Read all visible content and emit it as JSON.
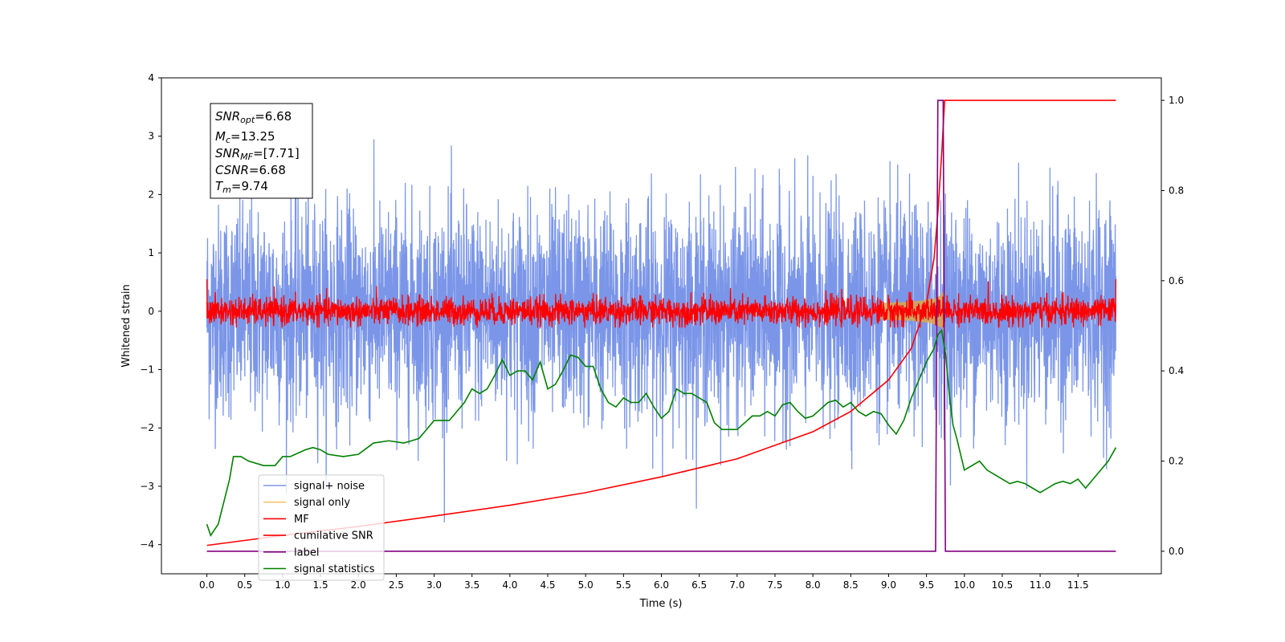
{
  "chart_data": {
    "type": "line",
    "xlabel": "Time (s)",
    "ylabel": "Whitened strain",
    "xlim": [
      -0.6,
      12.6
    ],
    "ylim": [
      -4.5,
      4.0
    ],
    "y2lim": [
      -0.05,
      1.05
    ],
    "x_ticks": [
      "0.0",
      "0.5",
      "1.0",
      "1.5",
      "2.0",
      "2.5",
      "3.0",
      "3.5",
      "4.0",
      "4.5",
      "5.0",
      "5.5",
      "6.0",
      "6.5",
      "7.0",
      "7.5",
      "8.0",
      "8.5",
      "9.0",
      "9.5",
      "10.0",
      "10.5",
      "11.0",
      "11.5"
    ],
    "y_ticks": [
      "4",
      "3",
      "2",
      "1",
      "0",
      "−1",
      "−2",
      "−3",
      "−4"
    ],
    "y2_ticks": [
      "1.0",
      "0.8",
      "0.6",
      "0.4",
      "0.2",
      "0.0"
    ],
    "info_box": {
      "snr_opt": {
        "symbol": "SNR",
        "sub": "opt",
        "value": "=6.68"
      },
      "mc": {
        "symbol": "M",
        "sub": "c",
        "value": "=13.25"
      },
      "snr_mf": {
        "symbol": "SNR",
        "sub": "MF",
        "value": "=[7.71]"
      },
      "csnr": {
        "symbol": "CSNR",
        "sub": "",
        "value": "=6.68"
      },
      "tm": {
        "symbol": "T",
        "sub": "m",
        "value": "=9.74"
      }
    },
    "legend": {
      "placement": "lower-left",
      "entries": [
        {
          "label": "signal+ noise",
          "color": "#7b96e8"
        },
        {
          "label": "signal only",
          "color": "#f5c26b"
        },
        {
          "label": "MF",
          "color": "#ff0000"
        },
        {
          "label": "cumilative SNR",
          "color": "#ff0000"
        },
        {
          "label": "label",
          "color": "#800080"
        },
        {
          "label": "signal statistics",
          "color": "#008000"
        }
      ]
    },
    "series": [
      {
        "name": "signal+ noise",
        "axis": "left",
        "description_std": 0.9,
        "x_range": [
          0.0,
          12.0
        ],
        "color": "#7b96e8"
      },
      {
        "name": "signal only",
        "axis": "left",
        "chirp_end": 9.74,
        "color": "#d9a84e"
      },
      {
        "name": "MF",
        "axis": "left",
        "color": "#ff0000"
      },
      {
        "name": "cumilative SNR",
        "axis": "right",
        "color": "#ff0000",
        "x": [
          0.0,
          1.0,
          2.0,
          3.0,
          4.0,
          5.0,
          6.0,
          7.0,
          8.0,
          8.5,
          9.0,
          9.3,
          9.5,
          9.6,
          9.65,
          9.7,
          9.74,
          10.0,
          11.0,
          12.0
        ],
        "y": [
          0.013,
          0.035,
          0.055,
          0.078,
          0.102,
          0.13,
          0.165,
          0.205,
          0.265,
          0.31,
          0.38,
          0.45,
          0.55,
          0.65,
          0.75,
          0.88,
          1.0,
          1.0,
          1.0,
          1.0
        ]
      },
      {
        "name": "label",
        "axis": "right",
        "color": "#800080",
        "x": [
          0.0,
          9.62,
          9.65,
          9.72,
          9.75,
          12.0
        ],
        "y": [
          0.0,
          0.0,
          1.0,
          1.0,
          0.0,
          0.0
        ]
      },
      {
        "name": "signal statistics",
        "axis": "right",
        "color": "#008000",
        "x": [
          0.0,
          0.05,
          0.15,
          0.3,
          0.35,
          0.45,
          0.55,
          0.75,
          0.9,
          1.0,
          1.1,
          1.3,
          1.4,
          1.5,
          1.6,
          1.8,
          2.0,
          2.2,
          2.4,
          2.6,
          2.8,
          2.9,
          3.0,
          3.2,
          3.4,
          3.5,
          3.6,
          3.7,
          3.8,
          3.9,
          4.0,
          4.1,
          4.2,
          4.3,
          4.4,
          4.5,
          4.6,
          4.7,
          4.8,
          4.9,
          5.0,
          5.1,
          5.2,
          5.3,
          5.4,
          5.5,
          5.6,
          5.7,
          5.8,
          5.9,
          6.0,
          6.1,
          6.2,
          6.3,
          6.4,
          6.5,
          6.6,
          6.7,
          6.8,
          6.9,
          7.0,
          7.1,
          7.2,
          7.3,
          7.4,
          7.5,
          7.6,
          7.7,
          7.8,
          7.9,
          8.0,
          8.1,
          8.2,
          8.3,
          8.4,
          8.5,
          8.6,
          8.7,
          8.8,
          8.9,
          9.0,
          9.1,
          9.2,
          9.3,
          9.4,
          9.5,
          9.6,
          9.65,
          9.7,
          9.75,
          9.8,
          9.85,
          9.9,
          10.0,
          10.1,
          10.2,
          10.3,
          10.4,
          10.5,
          10.6,
          10.7,
          10.8,
          10.9,
          11.0,
          11.1,
          11.2,
          11.3,
          11.4,
          11.5,
          11.6,
          11.7,
          11.8,
          11.9,
          12.0
        ],
        "y": [
          0.06,
          0.035,
          0.06,
          0.16,
          0.21,
          0.21,
          0.2,
          0.19,
          0.19,
          0.21,
          0.21,
          0.225,
          0.23,
          0.225,
          0.215,
          0.21,
          0.215,
          0.24,
          0.245,
          0.24,
          0.25,
          0.27,
          0.29,
          0.29,
          0.33,
          0.36,
          0.35,
          0.36,
          0.39,
          0.425,
          0.39,
          0.4,
          0.4,
          0.38,
          0.42,
          0.36,
          0.37,
          0.4,
          0.435,
          0.43,
          0.41,
          0.41,
          0.36,
          0.33,
          0.32,
          0.34,
          0.33,
          0.33,
          0.35,
          0.32,
          0.295,
          0.31,
          0.36,
          0.35,
          0.35,
          0.34,
          0.33,
          0.285,
          0.27,
          0.27,
          0.27,
          0.285,
          0.3,
          0.3,
          0.31,
          0.3,
          0.325,
          0.33,
          0.31,
          0.295,
          0.3,
          0.315,
          0.33,
          0.335,
          0.32,
          0.33,
          0.31,
          0.3,
          0.31,
          0.305,
          0.28,
          0.26,
          0.29,
          0.34,
          0.38,
          0.42,
          0.45,
          0.48,
          0.49,
          0.44,
          0.35,
          0.28,
          0.25,
          0.18,
          0.19,
          0.2,
          0.18,
          0.17,
          0.16,
          0.15,
          0.155,
          0.15,
          0.14,
          0.13,
          0.14,
          0.15,
          0.155,
          0.15,
          0.16,
          0.14,
          0.16,
          0.18,
          0.2,
          0.23
        ]
      }
    ]
  }
}
